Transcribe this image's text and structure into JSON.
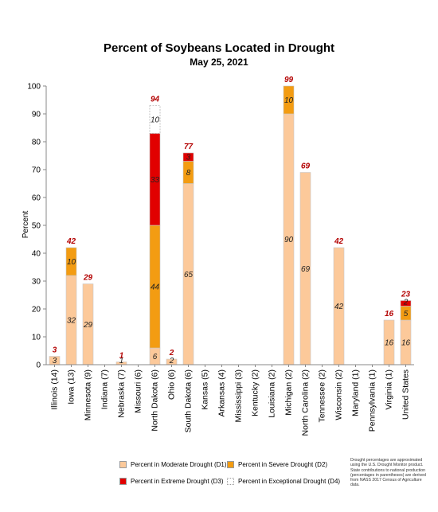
{
  "chart_data": {
    "type": "bar",
    "stacked": true,
    "title": "Percent of Soybeans Located in Drought",
    "subtitle": "May 25, 2021",
    "ylabel": "Percent",
    "xlabel": "",
    "ylim": [
      0,
      100
    ],
    "yticks": [
      0,
      10,
      20,
      30,
      40,
      50,
      60,
      70,
      80,
      90,
      100
    ],
    "grid": false,
    "legend_position": "bottom",
    "categories": [
      "Illinois (14)",
      "Iowa (13)",
      "Minnesota (9)",
      "Indiana (7)",
      "Nebraska (7)",
      "Missouri (6)",
      "North Dakota (6)",
      "Ohio (6)",
      "South Dakota (6)",
      "Kansas (5)",
      "Arkansas (4)",
      "Mississippi (3)",
      "Kentucky (2)",
      "Louisiana (2)",
      "Michigan (2)",
      "North Carolina (2)",
      "Tennessee (2)",
      "Wisconsin (2)",
      "Maryland (1)",
      "Pennsylvania (1)",
      "Virginia (1)",
      "United States"
    ],
    "series": [
      {
        "name": "Percent in Moderate Drought (D1)",
        "color": "#fcc99a",
        "values": [
          3,
          32,
          29,
          0,
          1,
          0,
          6,
          2,
          65,
          0,
          0,
          0,
          0,
          0,
          90,
          69,
          0,
          42,
          0,
          0,
          16,
          16
        ]
      },
      {
        "name": "Percent in Severe Drought (D2)",
        "color": "#f39c12",
        "values": [
          0,
          10,
          0,
          0,
          0,
          0,
          44,
          0,
          8,
          0,
          0,
          0,
          0,
          0,
          10,
          0,
          0,
          0,
          0,
          0,
          0,
          5
        ]
      },
      {
        "name": "Percent in Extreme Drought (D3)",
        "color": "#e10000",
        "values": [
          0,
          0,
          0,
          0,
          0,
          0,
          33,
          0,
          3,
          0,
          0,
          0,
          0,
          0,
          0,
          0,
          0,
          0,
          0,
          0,
          0,
          2
        ]
      },
      {
        "name": "Percent in Exceptional Drought (D4)",
        "color": "#ffffff",
        "values": [
          0,
          0,
          0,
          0,
          0,
          0,
          10,
          0,
          0,
          0,
          0,
          0,
          0,
          0,
          0,
          0,
          0,
          0,
          0,
          0,
          0,
          0
        ]
      }
    ],
    "segment_labels": [
      [
        "3",
        "32",
        "29",
        "",
        "1",
        "",
        "6",
        "2",
        "65",
        "",
        "",
        "",
        "",
        "",
        "90",
        "69",
        "",
        "42",
        "",
        "",
        "16",
        "16"
      ],
      [
        "",
        "10",
        "",
        "",
        "",
        "",
        "44",
        "",
        "8",
        "",
        "",
        "",
        "",
        "",
        "10",
        "",
        "",
        "",
        "",
        "",
        "",
        "5"
      ],
      [
        "",
        "",
        "",
        "",
        "",
        "",
        "33",
        "",
        "3",
        "",
        "",
        "",
        "",
        "",
        "",
        "",
        "",
        "",
        "",
        "",
        "",
        "2"
      ],
      [
        "",
        "",
        "",
        "",
        "",
        "",
        "10",
        "",
        "",
        "",
        "",
        "",
        "",
        "",
        "",
        "",
        "",
        "",
        "",
        "",
        "",
        ""
      ]
    ],
    "totals": [
      "3",
      "42",
      "29",
      "",
      "1",
      "",
      "94",
      "2",
      "77",
      "",
      "",
      "",
      "",
      "",
      "99",
      "69",
      "",
      "42",
      "",
      "",
      "16",
      "23"
    ]
  },
  "note": "Drought percentages are approximated using the U.S. Drought Monitor product. State contributions to national production (percentages in parentheses) are derived from NASS 2017 Census of Agriculture data."
}
